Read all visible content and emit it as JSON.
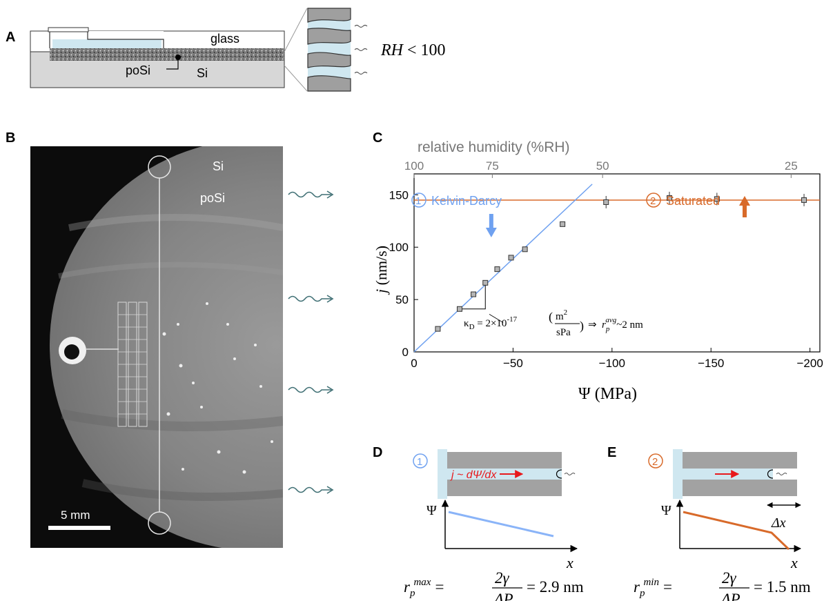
{
  "panels": {
    "a": "A",
    "b": "B",
    "c": "C",
    "d": "D",
    "e": "E"
  },
  "panel_a": {
    "glass": "glass",
    "posi": "poSi",
    "si": "Si",
    "rh_sym": "RH",
    "rh_rest": "< 100"
  },
  "panel_b": {
    "si": "Si",
    "posi": "poSi",
    "scale": "5 mm"
  },
  "chart_data": {
    "type": "scatter",
    "xlabel": "Ψ (MPa)",
    "ylabel_j": "j",
    "ylabel_unit": " (nm/s)",
    "top_axis_label": "relative humidity (%RH)",
    "xlim": [
      0,
      -205
    ],
    "ylim": [
      0,
      170
    ],
    "x_ticks": [
      0,
      -50,
      -100,
      -150,
      -200
    ],
    "x_tick_labels": [
      "0",
      "−50",
      "−100",
      "−150",
      "−200"
    ],
    "y_ticks": [
      0,
      50,
      100,
      150
    ],
    "y_tick_labels": [
      "0",
      "50",
      "100",
      "150"
    ],
    "top_ticks": [
      100,
      75,
      50,
      25
    ],
    "top_tick_labels": [
      "100",
      "75",
      "50",
      "25"
    ],
    "points": [
      {
        "x": -12,
        "y": 22
      },
      {
        "x": -23,
        "y": 41
      },
      {
        "x": -30,
        "y": 55
      },
      {
        "x": -36,
        "y": 66
      },
      {
        "x": -42,
        "y": 79
      },
      {
        "x": -49,
        "y": 90
      },
      {
        "x": -56,
        "y": 98
      },
      {
        "x": -75,
        "y": 122
      },
      {
        "x": -97,
        "y": 143
      },
      {
        "x": -129,
        "y": 147
      },
      {
        "x": -153,
        "y": 146
      },
      {
        "x": -197,
        "y": 145
      }
    ],
    "kelvin_darcy_line": {
      "slope": 1.78
    },
    "saturated_level": 145,
    "saturated_arrow_x": -167,
    "kd_arrow_x": -39,
    "kd_label": "Kelvin-Darcy",
    "kd_num": "1",
    "sat_label": "Saturated",
    "sat_num": "2",
    "annotation_kappa": "κ",
    "annotation_kappa_sub": "D",
    "annotation_value": " = 2×10",
    "annotation_exp": "-17",
    "annotation_unit_num": "m",
    "annotation_unit_num_exp": "2",
    "annotation_unit_den": "sPa",
    "annotation_implies": "⇒",
    "annotation_r": "r",
    "annotation_r_sub": "p",
    "annotation_r_sup": "avg",
    "annotation_r_val": "~2 nm",
    "colors": {
      "blue": "#6fa1f0",
      "orange": "#d86a2a",
      "marker": "#8a8a8a"
    }
  },
  "panel_d": {
    "num": "1",
    "flux": "j ~ dΨ/dx",
    "psi": "Ψ",
    "x": "x",
    "formula_r": "r",
    "formula_sub": "p",
    "formula_sup": "max",
    "formula_eq": "=",
    "formula_num": "2γ",
    "formula_den": "ΔP",
    "formula_val": "= 2.9 nm"
  },
  "panel_e": {
    "num": "2",
    "psi": "Ψ",
    "x": "x",
    "dx": "Δx",
    "formula_r": "r",
    "formula_sub": "p",
    "formula_sup": "min",
    "formula_eq": "=",
    "formula_num": "2γ",
    "formula_den": "ΔP",
    "formula_val": "= 1.5 nm"
  }
}
